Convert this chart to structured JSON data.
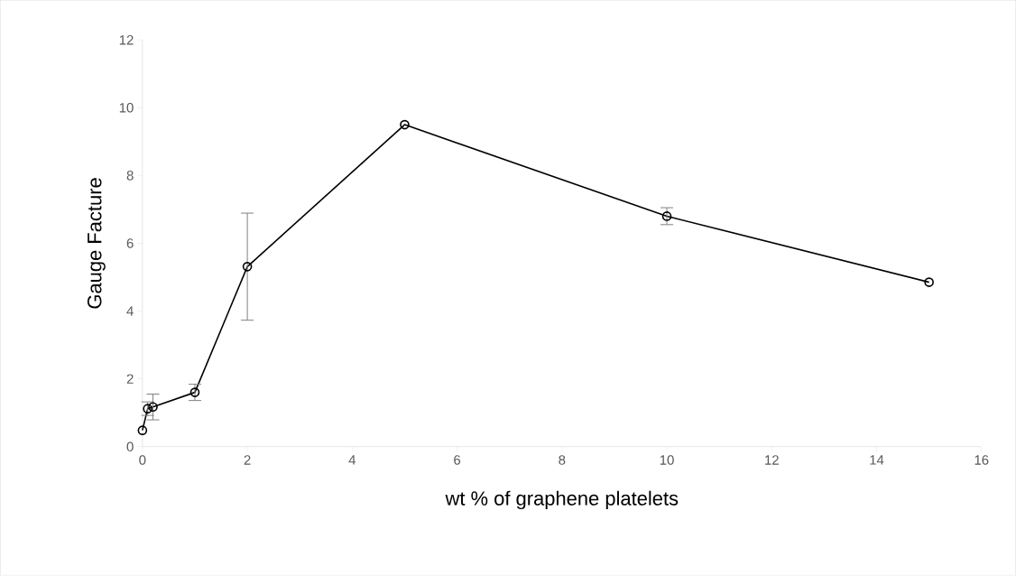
{
  "chart_data": {
    "type": "line",
    "xlabel": "wt % of graphene platelets",
    "ylabel": "Gauge Facture",
    "x": [
      0,
      0.1,
      0.2,
      1,
      2,
      5,
      10,
      15
    ],
    "values": [
      0.48,
      1.12,
      1.17,
      1.6,
      5.31,
      9.5,
      6.8,
      4.85
    ],
    "errors": [
      null,
      0.2,
      0.38,
      0.24,
      1.58,
      null,
      0.25,
      null
    ],
    "color": "#000000",
    "marker": "circle",
    "line_style": "solid",
    "grid": false,
    "xlim": [
      0,
      16
    ],
    "xticks": [
      0,
      2,
      4,
      6,
      8,
      10,
      12,
      14,
      16
    ],
    "ylim": [
      0,
      12
    ],
    "yticks": [
      0,
      2,
      4,
      6,
      8,
      10,
      12
    ]
  }
}
